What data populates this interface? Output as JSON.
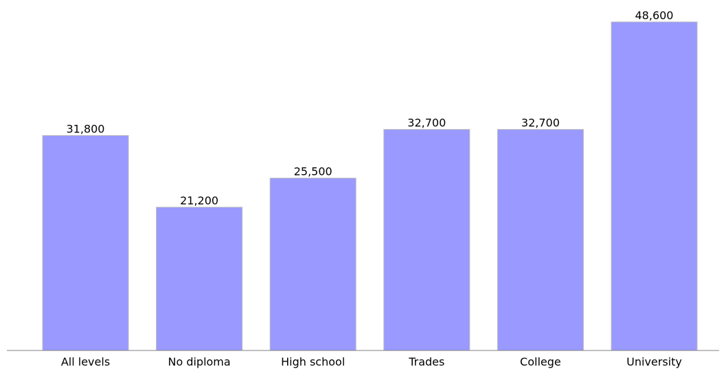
{
  "colors": {
    "bar_fill": "#9999ff",
    "bar_stroke": "#bcbcbc",
    "axis": "#808080"
  },
  "chart_data": {
    "type": "bar",
    "categories": [
      "All levels",
      "No diploma",
      "High school",
      "Trades",
      "College",
      "University"
    ],
    "values": [
      31800,
      21200,
      25500,
      32700,
      32700,
      48600
    ],
    "value_labels": [
      "31,800",
      "21,200",
      "25,500",
      "32,700",
      "32,700",
      "48,600"
    ],
    "ylim": [
      0,
      52000
    ],
    "grid": false,
    "legend": "none"
  }
}
